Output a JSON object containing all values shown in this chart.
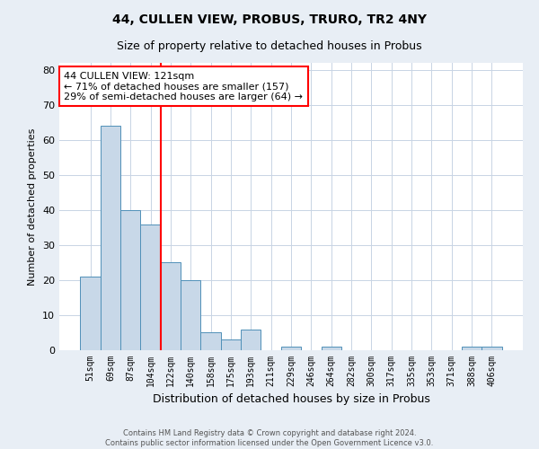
{
  "title": "44, CULLEN VIEW, PROBUS, TRURO, TR2 4NY",
  "subtitle": "Size of property relative to detached houses in Probus",
  "xlabel": "Distribution of detached houses by size in Probus",
  "ylabel": "Number of detached properties",
  "footer_line1": "Contains HM Land Registry data © Crown copyright and database right 2024.",
  "footer_line2": "Contains public sector information licensed under the Open Government Licence v3.0.",
  "bin_labels": [
    "51sqm",
    "69sqm",
    "87sqm",
    "104sqm",
    "122sqm",
    "140sqm",
    "158sqm",
    "175sqm",
    "193sqm",
    "211sqm",
    "229sqm",
    "246sqm",
    "264sqm",
    "282sqm",
    "300sqm",
    "317sqm",
    "335sqm",
    "353sqm",
    "371sqm",
    "388sqm",
    "406sqm"
  ],
  "bar_values": [
    21,
    64,
    40,
    36,
    25,
    20,
    5,
    3,
    6,
    0,
    1,
    0,
    1,
    0,
    0,
    0,
    0,
    0,
    0,
    1,
    1
  ],
  "bar_color": "#c8d8e8",
  "bar_edge_color": "#5090b8",
  "grid_color": "#c8d4e4",
  "annotation_text": "44 CULLEN VIEW: 121sqm\n← 71% of detached houses are smaller (157)\n29% of semi-detached houses are larger (64) →",
  "annotation_box_color": "white",
  "annotation_box_edge_color": "red",
  "vline_color": "red",
  "vline_index": 4,
  "ylim": [
    0,
    82
  ],
  "yticks": [
    0,
    10,
    20,
    30,
    40,
    50,
    60,
    70,
    80
  ],
  "background_color": "#e8eef5",
  "plot_bg_color": "white",
  "title_fontsize": 10,
  "subtitle_fontsize": 9,
  "annotation_fontsize": 8,
  "ylabel_fontsize": 8,
  "xlabel_fontsize": 9,
  "tick_fontsize": 7,
  "footer_fontsize": 6
}
